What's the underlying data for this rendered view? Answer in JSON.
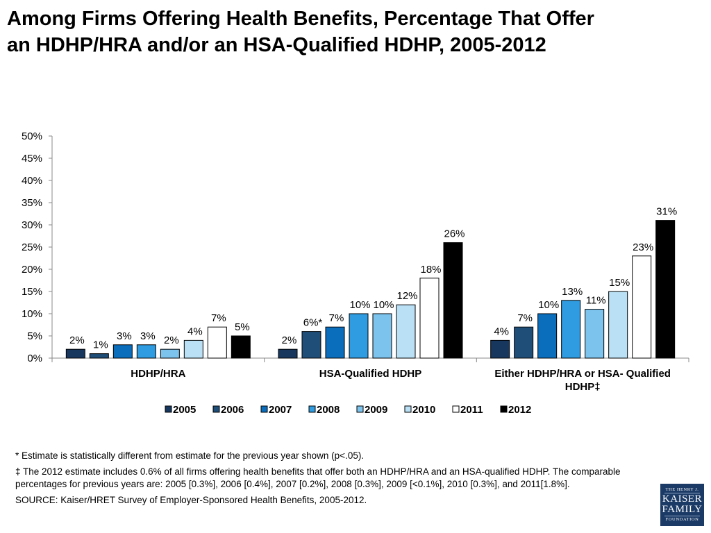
{
  "header": {
    "title_line1": "Among Firms Offering Health Benefits, Percentage That Offer",
    "title_line2": "an HDHP/HRA and/or an HSA-Qualified HDHP, 2005-2012"
  },
  "chart_data": {
    "type": "bar",
    "categories": [
      "HDHP/HRA",
      "HSA-Qualified HDHP",
      "Either HDHP/HRA or HSA- Qualified HDHP‡"
    ],
    "category_label_lines": [
      [
        "HDHP/HRA"
      ],
      [
        "HSA-Qualified HDHP"
      ],
      [
        "Either HDHP/HRA or HSA- Qualified",
        "HDHP‡"
      ]
    ],
    "series": [
      {
        "name": "2005",
        "color": "#17375e",
        "values": [
          2,
          2,
          4
        ],
        "labels": [
          "2%",
          "2%",
          "4%"
        ]
      },
      {
        "name": "2006",
        "color": "#1f4e79",
        "values": [
          1,
          6,
          7
        ],
        "labels": [
          "1%",
          "6%*",
          "7%"
        ]
      },
      {
        "name": "2007",
        "color": "#0a6ebd",
        "values": [
          3,
          7,
          10
        ],
        "labels": [
          "3%",
          "7%",
          "10%"
        ]
      },
      {
        "name": "2008",
        "color": "#2f9be0",
        "values": [
          3,
          10,
          13
        ],
        "labels": [
          "3%",
          "10%",
          "13%"
        ]
      },
      {
        "name": "2009",
        "color": "#7cc4ee",
        "values": [
          2,
          10,
          11
        ],
        "labels": [
          "2%",
          "10%",
          "11%"
        ]
      },
      {
        "name": "2010",
        "color": "#b9e0f5",
        "values": [
          4,
          12,
          15
        ],
        "labels": [
          "4%",
          "12%",
          "15%"
        ]
      },
      {
        "name": "2011",
        "color": "#ffffff",
        "values": [
          7,
          18,
          23
        ],
        "labels": [
          "7%",
          "18%",
          "23%"
        ]
      },
      {
        "name": "2012",
        "color": "#000000",
        "values": [
          5,
          26,
          31
        ],
        "labels": [
          "5%",
          "26%",
          "31%"
        ]
      }
    ],
    "yticks": [
      "0%",
      "5%",
      "10%",
      "15%",
      "20%",
      "25%",
      "30%",
      "35%",
      "40%",
      "45%",
      "50%"
    ],
    "ylim": [
      0,
      50
    ],
    "grid": false,
    "legend_position": "bottom"
  },
  "notes": {
    "note1": "* Estimate is statistically different from estimate for the previous year shown (p<.05).",
    "note2": "‡ The 2012 estimate includes 0.6% of all firms offering health benefits that offer both an HDHP/HRA and an HSA-qualified HDHP. The comparable percentages for previous years are: 2005 [0.3%], 2006 [0.4%], 2007 [0.2%], 2008 [0.3%], 2009 [<0.1%], 2010 [0.3%], and 2011[1.8%].",
    "source": "SOURCE:  Kaiser/HRET Survey of Employer-Sponsored Health Benefits, 2005-2012."
  },
  "logo": {
    "line1": "THE HENRY J.",
    "line2": "KAISER",
    "line3": "FAMILY",
    "line4": "FOUNDATION"
  }
}
